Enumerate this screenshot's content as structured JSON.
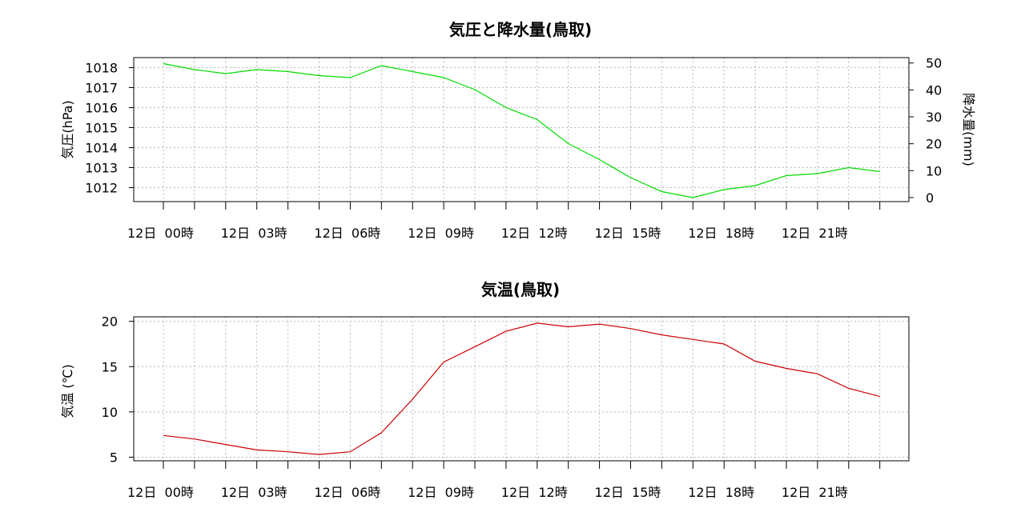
{
  "chart_data": [
    {
      "type": "line",
      "title": "気圧と降水量(鳥取)",
      "ylabel": "気圧(hPa)",
      "y2label": "降水量(mm)",
      "ylim": [
        1011.3,
        1018.5
      ],
      "yticks": [
        1012,
        1013,
        1014,
        1015,
        1016,
        1017,
        1018
      ],
      "y2lim": [
        -1.5,
        52
      ],
      "y2ticks": [
        0,
        10,
        20,
        30,
        40,
        50
      ],
      "x_tick_labels": [
        "12日 00時",
        "12日 03時",
        "12日 06時",
        "12日 09時",
        "12日 12時",
        "12日 15時",
        "12日 18時",
        "12日 21時"
      ],
      "grid": true,
      "series": [
        {
          "color": "#00dd00",
          "axis": "left",
          "x": [
            0,
            1,
            2,
            3,
            4,
            5,
            6,
            7,
            8,
            9,
            10,
            11,
            12,
            13,
            14,
            15,
            16,
            17,
            18,
            19,
            20,
            21,
            22,
            23
          ],
          "values": [
            1018.2,
            1017.9,
            1017.7,
            1017.9,
            1017.8,
            1017.6,
            1017.5,
            1018.1,
            1017.8,
            1017.5,
            1016.9,
            1016.0,
            1015.4,
            1014.2,
            1013.4,
            1012.5,
            1011.8,
            1011.5,
            1011.9,
            1012.1,
            1012.6,
            1012.7,
            1013.0,
            1012.8
          ]
        }
      ]
    },
    {
      "type": "line",
      "title": "気温(鳥取)",
      "ylabel": "気温 (℃)",
      "ylim": [
        4.6,
        20.5
      ],
      "yticks": [
        5,
        10,
        15,
        20
      ],
      "x_tick_labels": [
        "12日 00時",
        "12日 03時",
        "12日 06時",
        "12日 09時",
        "12日 12時",
        "12日 15時",
        "12日 18時",
        "12日 21時"
      ],
      "grid": true,
      "series": [
        {
          "color": "#cc0000",
          "x": [
            0,
            1,
            2,
            3,
            4,
            5,
            6,
            7,
            8,
            9,
            10,
            11,
            12,
            13,
            14,
            15,
            16,
            17,
            18,
            19,
            20,
            21,
            22,
            23
          ],
          "values": [
            7.4,
            7.0,
            6.4,
            5.8,
            5.6,
            5.3,
            5.6,
            7.7,
            11.4,
            15.5,
            17.2,
            18.9,
            19.8,
            19.4,
            19.7,
            19.2,
            18.5,
            18.0,
            17.5,
            15.6,
            14.8,
            14.2,
            12.6,
            11.7
          ]
        }
      ]
    }
  ]
}
